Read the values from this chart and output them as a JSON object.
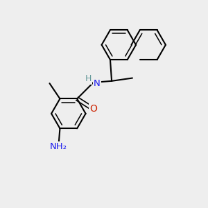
{
  "bg_color": "#eeeeee",
  "bond_color": "#000000",
  "bond_width": 1.5,
  "dbo": 0.06,
  "atom_colors": {
    "N": "#1a1aee",
    "N_H": "#669999",
    "O": "#cc2200"
  },
  "fs": 9.5,
  "figsize": [
    3.0,
    3.0
  ],
  "dpi": 100,
  "xlim": [
    -0.5,
    5.5
  ],
  "ylim": [
    -0.5,
    6.5
  ]
}
